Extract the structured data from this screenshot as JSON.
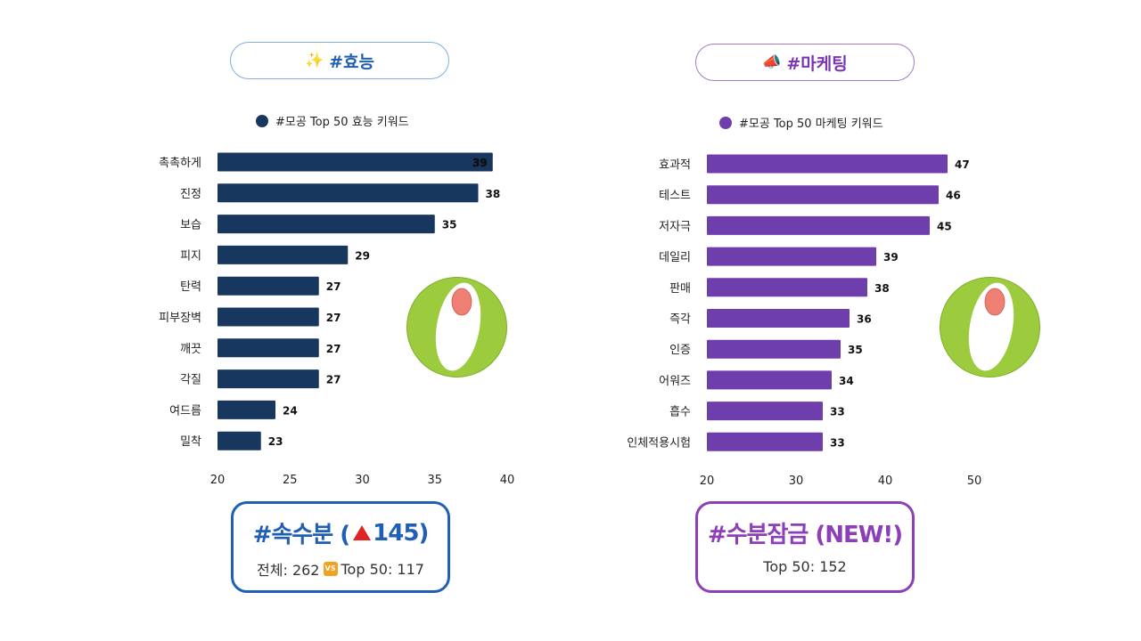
{
  "left": {
    "pill": {
      "icon": "✨",
      "icon_name": "sparkles-icon",
      "text": "#효능"
    },
    "legend": "#모공 Top 50 효능 키워드",
    "color": "#17375e",
    "summary": {
      "title_pre": "#속수분 (",
      "arrow_name": "red-up-triangle-icon",
      "title_num": "145",
      "title_post": ")",
      "sub_pre": "전체: 262",
      "vs": "VS",
      "sub_post": "Top 50: 117"
    }
  },
  "right": {
    "pill": {
      "icon": "📣",
      "icon_name": "megaphone-icon",
      "text": "#마케팅"
    },
    "legend": "#모공 Top 50 마케팅 키워드",
    "color": "#6f3ead",
    "summary": {
      "title": "#수분잠금 (NEW!)",
      "sub": "Top 50: 152"
    }
  },
  "logo": {
    "name": "o-logo-icon",
    "ring_color": "#9ccb3e",
    "dot_color": "#ef7f72"
  },
  "chart_data": [
    {
      "type": "bar",
      "orientation": "horizontal",
      "series": [
        {
          "name": "#모공 Top 50 효능 키워드",
          "values": [
            39,
            38,
            35,
            29,
            27,
            27,
            27,
            27,
            24,
            23
          ]
        }
      ],
      "categories": [
        "촉촉하게",
        "진정",
        "보습",
        "피지",
        "탄력",
        "피부장벽",
        "깨끗",
        "각질",
        "여드름",
        "밀착"
      ],
      "xlim": [
        20,
        40
      ],
      "ticks": [
        20,
        25,
        30,
        35,
        40
      ],
      "grid": false,
      "legend": "top"
    },
    {
      "type": "bar",
      "orientation": "horizontal",
      "series": [
        {
          "name": "#모공 Top 50 마케팅 키워드",
          "values": [
            47,
            46,
            45,
            39,
            38,
            36,
            35,
            34,
            33,
            33
          ]
        }
      ],
      "categories": [
        "효과적",
        "테스트",
        "저자극",
        "데일리",
        "판매",
        "즉각",
        "인증",
        "어워즈",
        "흡수",
        "인체적용시험"
      ],
      "xlim": [
        20,
        50
      ],
      "ticks": [
        20,
        30,
        40,
        50
      ],
      "grid": false,
      "legend": "top"
    }
  ]
}
